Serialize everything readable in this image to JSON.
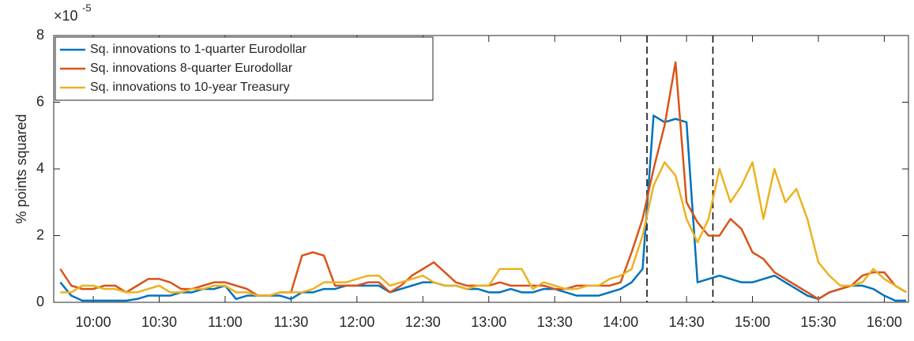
{
  "chart_data": {
    "type": "line",
    "y_label": "% points squared",
    "y_multiplier": "×10",
    "y_multiplier_exponent": "-5",
    "x": [
      "9:45",
      "9:50",
      "9:55",
      "10:00",
      "10:05",
      "10:10",
      "10:15",
      "10:20",
      "10:25",
      "10:30",
      "10:35",
      "10:40",
      "10:45",
      "10:50",
      "10:55",
      "11:00",
      "11:05",
      "11:10",
      "11:15",
      "11:20",
      "11:25",
      "11:30",
      "11:35",
      "11:40",
      "11:45",
      "11:50",
      "11:55",
      "12:00",
      "12:05",
      "12:10",
      "12:15",
      "12:20",
      "12:25",
      "12:30",
      "12:35",
      "12:40",
      "12:45",
      "12:50",
      "12:55",
      "13:00",
      "13:05",
      "13:10",
      "13:15",
      "13:20",
      "13:25",
      "13:30",
      "13:35",
      "13:40",
      "13:45",
      "13:50",
      "13:55",
      "14:00",
      "14:05",
      "14:10",
      "14:15",
      "14:20",
      "14:25",
      "14:30",
      "14:35",
      "14:40",
      "14:45",
      "14:50",
      "14:55",
      "15:00",
      "15:05",
      "15:10",
      "15:15",
      "15:20",
      "15:25",
      "15:30",
      "15:35",
      "15:40",
      "15:45",
      "15:50",
      "15:55",
      "16:00",
      "16:05",
      "16:10"
    ],
    "series": [
      {
        "name": "Sq. innovations to 1-quarter Eurodollar",
        "color": "#0072bd",
        "values": [
          0.6,
          0.2,
          0.05,
          0.05,
          0.05,
          0.05,
          0.05,
          0.1,
          0.2,
          0.2,
          0.2,
          0.3,
          0.3,
          0.4,
          0.4,
          0.5,
          0.1,
          0.2,
          0.2,
          0.2,
          0.2,
          0.1,
          0.3,
          0.3,
          0.4,
          0.4,
          0.5,
          0.5,
          0.5,
          0.5,
          0.3,
          0.4,
          0.5,
          0.6,
          0.6,
          0.5,
          0.5,
          0.4,
          0.4,
          0.3,
          0.3,
          0.4,
          0.3,
          0.3,
          0.4,
          0.4,
          0.3,
          0.2,
          0.2,
          0.2,
          0.3,
          0.4,
          0.6,
          1.0,
          5.6,
          5.4,
          5.5,
          5.4,
          0.6,
          0.7,
          0.8,
          0.7,
          0.6,
          0.6,
          0.7,
          0.8,
          0.6,
          0.4,
          0.2,
          0.1,
          0.3,
          0.4,
          0.5,
          0.5,
          0.4,
          0.2,
          0.05,
          0.05
        ]
      },
      {
        "name": "Sq. innovations 8-quarter Eurodollar",
        "color": "#d95319",
        "values": [
          1.0,
          0.5,
          0.4,
          0.4,
          0.5,
          0.5,
          0.3,
          0.5,
          0.7,
          0.7,
          0.6,
          0.4,
          0.4,
          0.5,
          0.6,
          0.6,
          0.5,
          0.4,
          0.2,
          0.2,
          0.3,
          0.3,
          1.4,
          1.5,
          1.4,
          0.5,
          0.5,
          0.5,
          0.6,
          0.6,
          0.3,
          0.5,
          0.8,
          1.0,
          1.2,
          0.9,
          0.6,
          0.5,
          0.5,
          0.5,
          0.6,
          0.5,
          0.5,
          0.5,
          0.5,
          0.4,
          0.4,
          0.5,
          0.5,
          0.5,
          0.5,
          0.6,
          1.5,
          2.5,
          4.0,
          5.3,
          7.2,
          3.0,
          2.4,
          2.0,
          2.0,
          2.5,
          2.2,
          1.5,
          1.3,
          0.9,
          0.7,
          0.5,
          0.3,
          0.1,
          0.3,
          0.4,
          0.5,
          0.8,
          0.9,
          0.9,
          0.5,
          0.3
        ]
      },
      {
        "name": "Sq. innovations to 10-year Treasury",
        "color": "#edb120",
        "values": [
          0.3,
          0.3,
          0.5,
          0.5,
          0.4,
          0.4,
          0.3,
          0.3,
          0.4,
          0.5,
          0.3,
          0.3,
          0.4,
          0.4,
          0.5,
          0.5,
          0.3,
          0.3,
          0.2,
          0.2,
          0.3,
          0.3,
          0.3,
          0.4,
          0.6,
          0.6,
          0.6,
          0.7,
          0.8,
          0.8,
          0.5,
          0.6,
          0.7,
          0.8,
          0.6,
          0.5,
          0.5,
          0.4,
          0.5,
          0.5,
          1.0,
          1.0,
          1.0,
          0.4,
          0.6,
          0.5,
          0.4,
          0.4,
          0.5,
          0.5,
          0.7,
          0.8,
          1.0,
          2.0,
          3.5,
          4.2,
          3.8,
          2.5,
          1.8,
          2.5,
          4.0,
          3.0,
          3.5,
          4.2,
          2.5,
          4.0,
          3.0,
          3.4,
          2.5,
          1.2,
          0.8,
          0.5,
          0.5,
          0.6,
          1.0,
          0.7,
          0.5,
          0.3
        ]
      }
    ],
    "xlim": [
      "9:42",
      "16:11"
    ],
    "xticks": [
      "10:00",
      "10:30",
      "11:00",
      "11:30",
      "12:00",
      "12:30",
      "13:00",
      "13:30",
      "14:00",
      "14:30",
      "15:00",
      "15:30",
      "16:00"
    ],
    "ylim": [
      0,
      8
    ],
    "yticks": [
      0,
      2,
      4,
      6,
      8
    ],
    "vlines": [
      "14:12",
      "14:42"
    ],
    "grid": false,
    "legend": "upper-left"
  }
}
